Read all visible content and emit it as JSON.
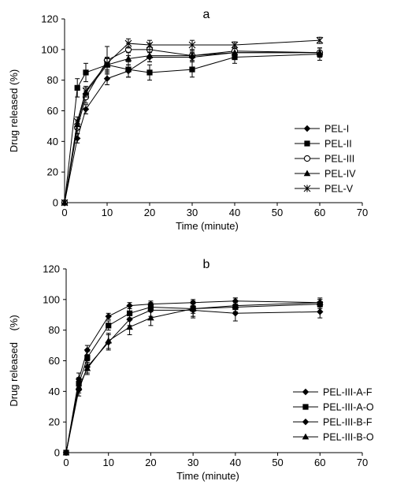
{
  "chart_data": [
    {
      "type": "line",
      "panel_label": "a",
      "xlabel": "Time (minute)",
      "ylabel": "Drug released (%)",
      "xlim": [
        0,
        70
      ],
      "ylim": [
        0,
        120
      ],
      "xticks": [
        "0",
        "10",
        "20",
        "30",
        "40",
        "50",
        "60",
        "70"
      ],
      "yticks": [
        "0",
        "20",
        "40",
        "60",
        "80",
        "100",
        "120"
      ],
      "grid": false,
      "legend": "right",
      "series": [
        {
          "name": "PEL-I",
          "marker": "diamond",
          "x": [
            0,
            3,
            5,
            10,
            15,
            20,
            30,
            40,
            60
          ],
          "y": [
            0,
            42,
            61,
            81,
            86,
            95,
            95,
            98,
            98
          ],
          "err": [
            0,
            3,
            3,
            4,
            4,
            3,
            3,
            3,
            3
          ]
        },
        {
          "name": "PEL-II",
          "marker": "square",
          "x": [
            0,
            3,
            5,
            10,
            15,
            20,
            30,
            40,
            60
          ],
          "y": [
            0,
            75,
            85,
            90,
            87,
            85,
            87,
            95,
            97
          ],
          "err": [
            0,
            6,
            6,
            4,
            5,
            5,
            5,
            4,
            4
          ]
        },
        {
          "name": "PEL-III",
          "marker": "circle",
          "x": [
            0,
            3,
            5,
            10,
            15,
            20,
            30,
            40,
            60
          ],
          "y": [
            0,
            49,
            69,
            93,
            100,
            100,
            96,
            99,
            98
          ],
          "err": [
            0,
            4,
            4,
            9,
            4,
            4,
            4,
            3,
            3
          ]
        },
        {
          "name": "PEL-IV",
          "marker": "triangle",
          "x": [
            0,
            3,
            5,
            10,
            15,
            20,
            30,
            40,
            60
          ],
          "y": [
            0,
            51,
            72,
            90,
            94,
            96,
            96,
            98,
            98
          ],
          "err": [
            0,
            3,
            3,
            4,
            4,
            4,
            3,
            3,
            3
          ]
        },
        {
          "name": "PEL-V",
          "marker": "star",
          "x": [
            0,
            3,
            5,
            10,
            15,
            20,
            30,
            40,
            60
          ],
          "y": [
            0,
            53,
            73,
            91,
            104,
            103,
            103,
            103,
            106
          ],
          "err": [
            0,
            3,
            3,
            4,
            3,
            3,
            3,
            2,
            2
          ]
        }
      ]
    },
    {
      "type": "line",
      "panel_label": "b",
      "xlabel": "Time (minute)",
      "ylabel": "Drug released    (%)",
      "xlim": [
        0,
        70
      ],
      "ylim": [
        0,
        120
      ],
      "xticks": [
        "0",
        "10",
        "20",
        "30",
        "40",
        "50",
        "60",
        "70"
      ],
      "yticks": [
        "0",
        "20",
        "40",
        "60",
        "80",
        "100",
        "120"
      ],
      "grid": false,
      "legend": "bottom-right",
      "series": [
        {
          "name": "PEL-III-A-F",
          "marker": "diamond",
          "x": [
            0,
            3,
            5,
            10,
            15,
            20,
            30,
            40,
            60
          ],
          "y": [
            0,
            48,
            67,
            89,
            96,
            97,
            98,
            99,
            98
          ],
          "err": [
            0,
            4,
            3,
            2,
            2,
            2,
            2,
            2,
            2
          ]
        },
        {
          "name": "PEL-III-A-O",
          "marker": "square",
          "x": [
            0,
            3,
            5,
            10,
            15,
            20,
            30,
            40,
            60
          ],
          "y": [
            0,
            45,
            62,
            83,
            91,
            95,
            94,
            95,
            97
          ],
          "err": [
            0,
            4,
            4,
            3,
            3,
            3,
            3,
            3,
            3
          ]
        },
        {
          "name": "PEL-III-B-F",
          "marker": "diamond",
          "x": [
            0,
            3,
            5,
            10,
            15,
            20,
            30,
            40,
            60
          ],
          "y": [
            0,
            41,
            56,
            72,
            87,
            93,
            93,
            91,
            92
          ],
          "err": [
            0,
            4,
            4,
            5,
            4,
            4,
            5,
            5,
            4
          ]
        },
        {
          "name": "PEL-III-B-O",
          "marker": "triangle",
          "x": [
            0,
            3,
            5,
            10,
            15,
            20,
            30,
            40,
            60
          ],
          "y": [
            0,
            43,
            55,
            73,
            82,
            88,
            94,
            96,
            98
          ],
          "err": [
            0,
            4,
            4,
            5,
            5,
            5,
            5,
            5,
            3
          ]
        }
      ]
    }
  ]
}
